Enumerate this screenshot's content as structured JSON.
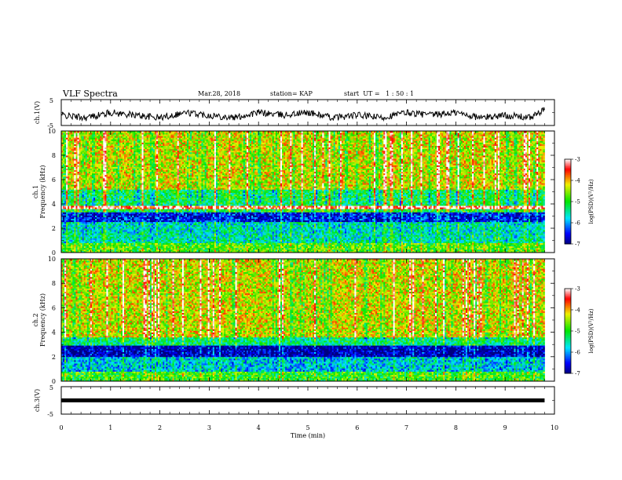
{
  "header": {
    "title": "VLF Spectra",
    "date": "Mar.28, 2018",
    "station": "station= KAP",
    "start": "start  UT =   1 : 50 : 1"
  },
  "colors": {
    "spectrogram_scale": [
      "#000080",
      "#0000ff",
      "#00ffff",
      "#00ff00",
      "#ffff00",
      "#ff0000",
      "#ffffff"
    ],
    "trace": "#000000"
  },
  "chart_data": [
    {
      "type": "line",
      "ylabel": "ch.1(V)",
      "ylim": [
        -5,
        5
      ],
      "yticks": [
        "5",
        "-5"
      ],
      "xlim": [
        0,
        10
      ],
      "series": [
        {
          "x": [
            0,
            0.5,
            1,
            1.5,
            2,
            2.5,
            3,
            3.5,
            4,
            4.5,
            5,
            5.5,
            6,
            6.5,
            7,
            7.5,
            8,
            8.5,
            9,
            9.5,
            9.8
          ],
          "values": [
            -1,
            -2,
            0,
            -1,
            -2,
            0,
            -1,
            -2,
            0,
            -1,
            0,
            -2,
            -1,
            -2,
            0,
            -1,
            0,
            -2,
            -1,
            -2,
            1
          ]
        }
      ]
    },
    {
      "type": "heatmap",
      "ylabel": "ch.1\nFrequency (kHz)",
      "ylim": [
        0,
        10
      ],
      "yticks": [
        "0",
        "2",
        "4",
        "6",
        "8",
        "10"
      ],
      "xlim": [
        0,
        10
      ],
      "colorbar": {
        "label": "log(PSD)(V²/Hz)",
        "range": [
          -7,
          -3
        ],
        "ticks": [
          "-3",
          "-4",
          "-5",
          "-6",
          "-7"
        ]
      },
      "bands": [
        {
          "from": 0,
          "to": 0.8,
          "level": -4.8
        },
        {
          "from": 0.8,
          "to": 1.6,
          "level": -5.5
        },
        {
          "from": 1.6,
          "to": 2.6,
          "level": -5.6
        },
        {
          "from": 2.6,
          "to": 3.4,
          "level": -6.5
        },
        {
          "from": 3.4,
          "to": 3.6,
          "level": -5.0
        },
        {
          "from": 3.6,
          "to": 3.9,
          "level": -3.2
        },
        {
          "from": 3.9,
          "to": 5.2,
          "level": -5.2
        },
        {
          "from": 5.2,
          "to": 10,
          "level": -4.3
        }
      ]
    },
    {
      "type": "heatmap",
      "ylabel": "ch.2\nFrequency (kHz)",
      "ylim": [
        0,
        10
      ],
      "yticks": [
        "0",
        "2",
        "4",
        "6",
        "8",
        "10"
      ],
      "xlim": [
        0,
        10
      ],
      "colorbar": {
        "label": "log(PSD)(V²/Hz)",
        "range": [
          -7,
          -3
        ],
        "ticks": [
          "-3",
          "-4",
          "-5",
          "-6",
          "-7"
        ]
      },
      "bands": [
        {
          "from": 0,
          "to": 0.8,
          "level": -4.9
        },
        {
          "from": 0.8,
          "to": 2.0,
          "level": -5.8
        },
        {
          "from": 2.0,
          "to": 3.0,
          "level": -6.8
        },
        {
          "from": 3.0,
          "to": 3.6,
          "level": -5.3
        },
        {
          "from": 3.6,
          "to": 10,
          "level": -4.3
        }
      ]
    },
    {
      "type": "line",
      "ylabel": "ch.3(V)",
      "ylim": [
        -5,
        5
      ],
      "yticks": [
        "5",
        "-5"
      ],
      "xlim": [
        0,
        10
      ],
      "xlabel": "Time  (min)",
      "xticks": [
        "0",
        "1",
        "2",
        "3",
        "4",
        "5",
        "6",
        "7",
        "8",
        "9",
        "10"
      ],
      "series": [
        {
          "x": [
            0,
            9.8
          ],
          "values": [
            0,
            0
          ]
        }
      ]
    }
  ]
}
